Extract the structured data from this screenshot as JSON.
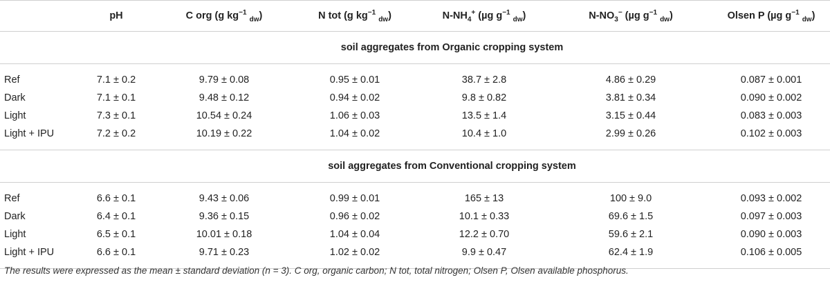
{
  "header": {
    "ph": "pH",
    "corg": {
      "label": "C org (g kg",
      "exp": "−1",
      "sub": "dw",
      "close": ")"
    },
    "ntot": {
      "label": "N tot (g kg",
      "exp": "−1",
      "sub": "dw",
      "close": ")"
    },
    "nh4": {
      "label": "N-NH",
      "sub4": "4",
      "sup": "+",
      "unit": " (µg g",
      "exp": "−1",
      "sub": "dw",
      "close": ")"
    },
    "no3": {
      "label": "N-NO",
      "sub3": "3",
      "sup": "−",
      "unit": " (µg g",
      "exp": "−1",
      "sub": "dw",
      "close": ")"
    },
    "olsen": {
      "label": "Olsen P (µg g",
      "exp": "−1",
      "sub": "dw",
      "close": ")"
    }
  },
  "groups": [
    {
      "title": "soil aggregates from Organic cropping system",
      "rows": [
        {
          "label": "Ref",
          "values": [
            "7.1 ± 0.2",
            "9.79 ± 0.08",
            "0.95 ± 0.01",
            "38.7 ± 2.8",
            "4.86 ± 0.29",
            "0.087 ± 0.001"
          ]
        },
        {
          "label": "Dark",
          "values": [
            "7.1 ± 0.1",
            "9.48 ± 0.12",
            "0.94 ± 0.02",
            "9.8 ± 0.82",
            "3.81 ± 0.34",
            "0.090 ± 0.002"
          ]
        },
        {
          "label": "Light",
          "values": [
            "7.3 ± 0.1",
            "10.54 ± 0.24",
            "1.06 ± 0.03",
            "13.5 ± 1.4",
            "3.15 ± 0.44",
            "0.083 ± 0.003"
          ]
        },
        {
          "label": "Light + IPU",
          "values": [
            "7.2 ± 0.2",
            "10.19 ± 0.22",
            "1.04 ± 0.02",
            "10.4 ± 1.0",
            "2.99 ± 0.26",
            "0.102 ± 0.003"
          ]
        }
      ]
    },
    {
      "title": "soil aggregates from Conventional cropping system",
      "rows": [
        {
          "label": "Ref",
          "values": [
            "6.6 ± 0.1",
            "9.43 ± 0.06",
            "0.99 ± 0.01",
            "165 ± 13",
            "100 ± 9.0",
            "0.093 ± 0.002"
          ]
        },
        {
          "label": "Dark",
          "values": [
            "6.4 ± 0.1",
            "9.36 ± 0.15",
            "0.96 ± 0.02",
            "10.1 ± 0.33",
            "69.6 ± 1.5",
            "0.097 ± 0.003"
          ]
        },
        {
          "label": "Light",
          "values": [
            "6.5 ± 0.1",
            "10.01 ± 0.18",
            "1.04 ± 0.04",
            "12.2 ± 0.70",
            "59.6 ± 2.1",
            "0.090 ± 0.003"
          ]
        },
        {
          "label": "Light + IPU",
          "values": [
            "6.6 ± 0.1",
            "9.71 ± 0.23",
            "1.02 ± 0.02",
            "9.9 ± 0.47",
            "62.4 ± 1.9",
            "0.106 ± 0.005"
          ]
        }
      ]
    }
  ],
  "footnote": "The results were expressed as the mean ± standard deviation (n = 3). C org, organic carbon; N tot, total nitrogen; Olsen P, Olsen available phosphorus."
}
